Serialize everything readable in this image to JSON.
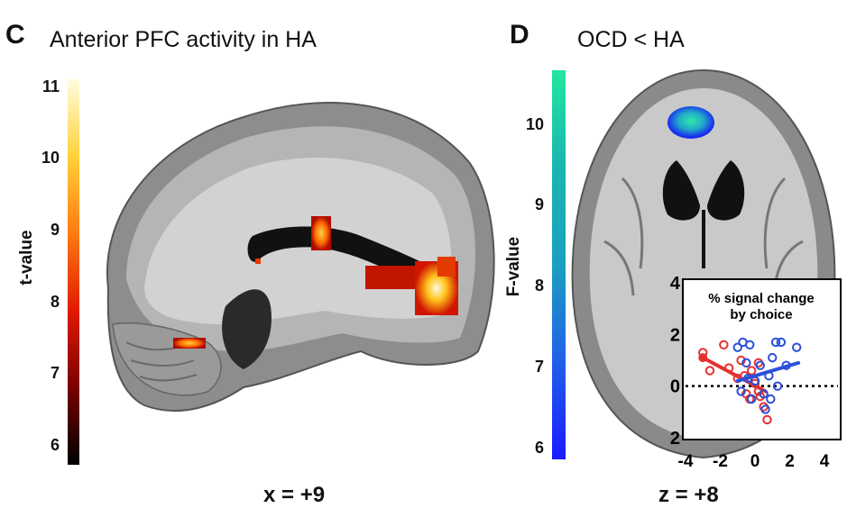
{
  "panel_c": {
    "letter": "C",
    "title": "Anterior PFC activity in HA",
    "colorbar_label": "t-value",
    "colorbar_ticks": [
      "11",
      "10",
      "9",
      "8",
      "7",
      "6"
    ],
    "colorbar_colors": [
      "#fffde0",
      "#ffd23a",
      "#ff7a10",
      "#e21a00",
      "#7a0000",
      "#000000"
    ],
    "coordinate": "x = +9"
  },
  "panel_d": {
    "letter": "D",
    "title": "OCD < HA",
    "colorbar_label": "F-value",
    "colorbar_ticks": [
      "10",
      "9",
      "8",
      "7",
      "6"
    ],
    "colorbar_colors": [
      "#22e6a0",
      "#1ab5b0",
      "#1aa0c0",
      "#2060e8",
      "#1a1aff"
    ],
    "coordinate": "z = +8"
  },
  "chart_data": {
    "type": "scatter",
    "title": "% signal change by choice",
    "xlim": [
      -4,
      4
    ],
    "ylim": [
      -2,
      4
    ],
    "x_ticks": [
      "-4",
      "-2",
      "0",
      "2",
      "4"
    ],
    "y_ticks": [
      "4",
      "2",
      "0",
      "-2"
    ],
    "reference_line_y": 0,
    "series": [
      {
        "color": "#e53030",
        "points": [
          [
            -3.0,
            1.3
          ],
          [
            -2.6,
            0.6
          ],
          [
            -1.8,
            1.6
          ],
          [
            -1.5,
            0.7
          ],
          [
            -1.0,
            0.3
          ],
          [
            -0.8,
            1.0
          ],
          [
            -0.5,
            -0.3
          ],
          [
            -0.3,
            -0.5
          ],
          [
            -0.2,
            0.6
          ],
          [
            0.0,
            0.1
          ],
          [
            0.2,
            -0.2
          ],
          [
            0.3,
            -0.4
          ],
          [
            0.5,
            -0.8
          ],
          [
            0.7,
            -1.3
          ],
          [
            0.2,
            0.9
          ],
          [
            -0.6,
            0.4
          ]
        ],
        "fit": [
          [
            -3.0,
            1.1
          ],
          [
            0.6,
            -0.2
          ]
        ]
      },
      {
        "color": "#2a4fd8",
        "points": [
          [
            -1.0,
            1.5
          ],
          [
            -0.7,
            1.7
          ],
          [
            -0.3,
            1.6
          ],
          [
            -0.5,
            0.9
          ],
          [
            -0.8,
            -0.2
          ],
          [
            -0.2,
            -0.5
          ],
          [
            0.0,
            0.2
          ],
          [
            0.3,
            0.8
          ],
          [
            0.5,
            -0.3
          ],
          [
            0.8,
            0.4
          ],
          [
            1.0,
            1.1
          ],
          [
            1.2,
            1.7
          ],
          [
            1.5,
            1.7
          ],
          [
            1.8,
            0.8
          ],
          [
            2.4,
            1.5
          ],
          [
            0.6,
            -0.9
          ],
          [
            1.3,
            0.0
          ],
          [
            -0.4,
            0.3
          ],
          [
            0.9,
            -0.5
          ]
        ],
        "fit": [
          [
            -1.0,
            0.2
          ],
          [
            2.5,
            0.9
          ]
        ]
      }
    ]
  }
}
